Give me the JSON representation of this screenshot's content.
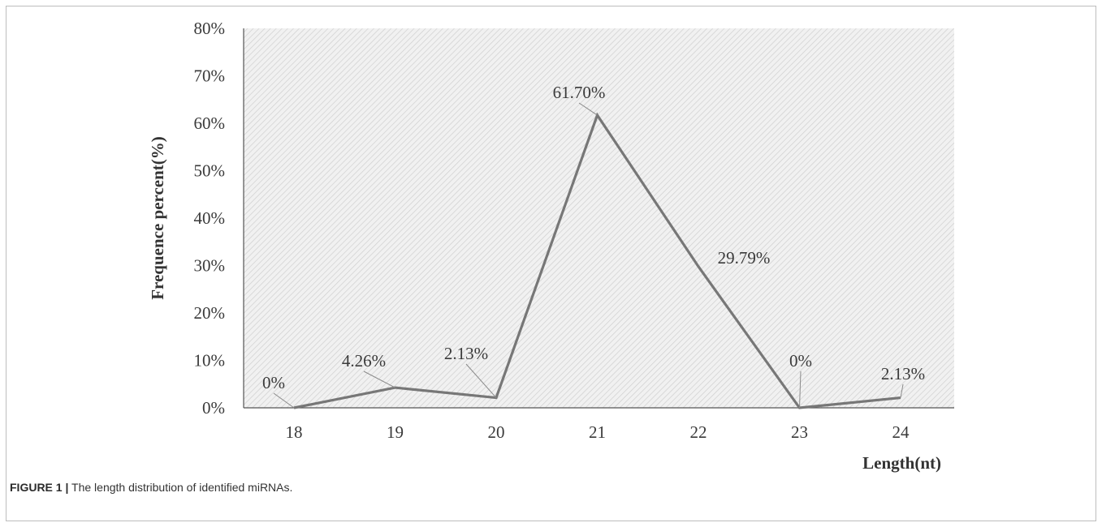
{
  "chart_data": {
    "type": "line",
    "x": [
      18,
      19,
      20,
      21,
      22,
      23,
      24
    ],
    "categories": [
      "18",
      "19",
      "20",
      "21",
      "22",
      "23",
      "24"
    ],
    "values": [
      0,
      4.26,
      2.13,
      61.7,
      29.79,
      0,
      2.13
    ],
    "data_labels": [
      "0%",
      "4.26%",
      "2.13%",
      "61.70%",
      "29.79%",
      "0%",
      "2.13%"
    ],
    "labeled": [
      true,
      true,
      true,
      true,
      true,
      true,
      true
    ],
    "ylim": [
      0,
      80
    ],
    "yticks": [
      "0%",
      "10%",
      "20%",
      "30%",
      "40%",
      "50%",
      "60%",
      "70%",
      "80%"
    ],
    "xlabel": "Length(nt)",
    "ylabel": "Frequence percent(%)",
    "grid": false,
    "legend": "none",
    "line_color": "#777777",
    "plot_fill": "hatched light gray"
  },
  "caption": {
    "label": "FIGURE 1",
    "separator": "|",
    "text": "The length distribution of identified miRNAs."
  }
}
